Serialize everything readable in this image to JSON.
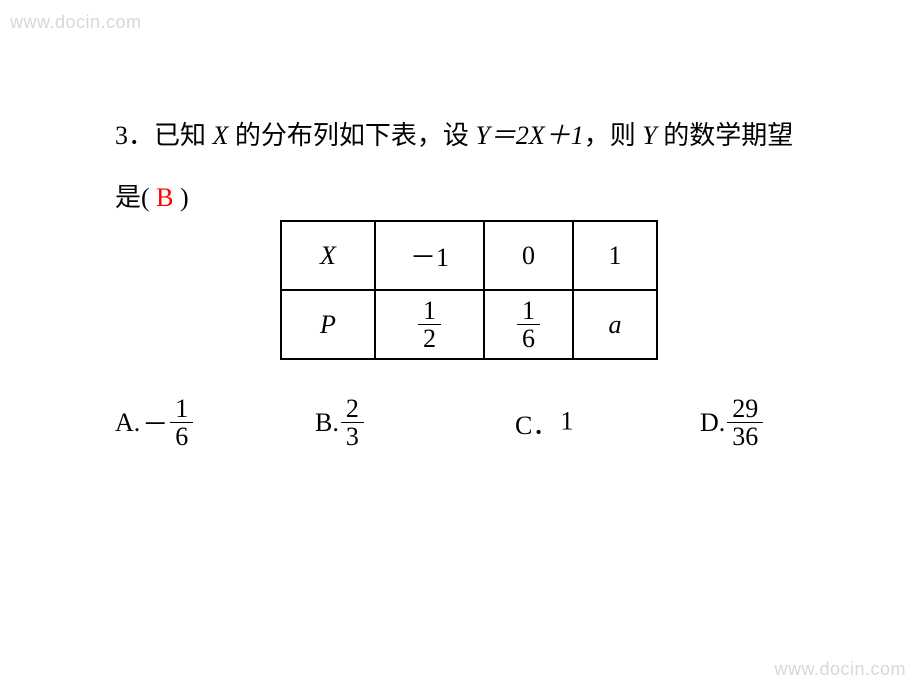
{
  "watermarks": {
    "top_left": "www.docin.com",
    "bottom_right": "www.docin.com"
  },
  "question": {
    "number": "3．",
    "text_part1": "已知 ",
    "var_X": "X",
    "text_part2": " 的分布列如下表，设 ",
    "equation": "Y＝2X＋1",
    "text_part3": "，则 ",
    "var_Y": "Y",
    "text_part4": " 的数学期望",
    "text_line2_prefix": "是(  ",
    "answer_letter": "B",
    "text_line2_suffix": "  )"
  },
  "table": {
    "header": {
      "label": "X",
      "c1": "－1",
      "c2": "0",
      "c3": "1"
    },
    "row": {
      "label": "P",
      "c1_num": "1",
      "c1_den": "2",
      "c2_num": "1",
      "c2_den": "6",
      "c3": "a"
    }
  },
  "options": {
    "A": {
      "prefix": "A.",
      "neg": "－",
      "num": "1",
      "den": "6"
    },
    "B": {
      "prefix": "B.",
      "num": "2",
      "den": "3"
    },
    "C": {
      "prefix": "C．",
      "value": "1"
    },
    "D": {
      "prefix": "D.",
      "num": "29",
      "den": "36"
    }
  },
  "colors": {
    "text": "#000000",
    "answer": "#ff0000",
    "watermark": "#b8b8b8",
    "background": "#ffffff",
    "border": "#000000"
  },
  "typography": {
    "question_fontsize_pt": 20,
    "table_fontsize_pt": 20,
    "option_fontsize_pt": 20,
    "watermark_fontsize_pt": 14
  }
}
